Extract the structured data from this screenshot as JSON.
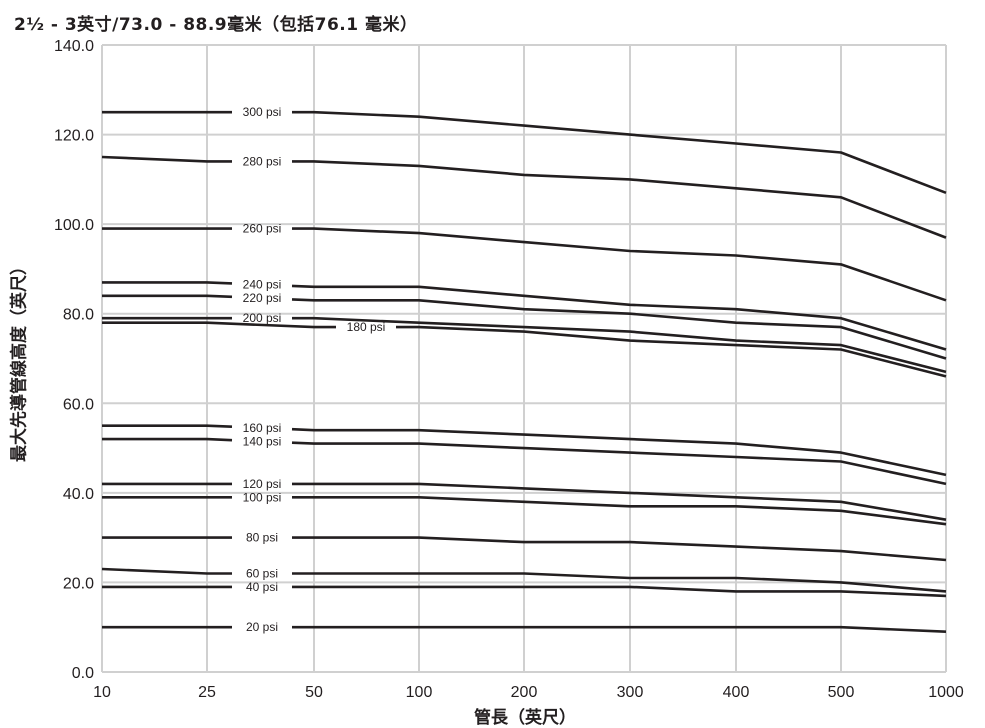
{
  "chart_data": {
    "type": "line",
    "title": "2½  -  3英寸/73.0  -  88.9毫米（包括76.1 毫米）",
    "xlabel": "管長（英尺）",
    "ylabel": "最大先導管線高度（英尺）",
    "x_categories": [
      "10",
      "25",
      "50",
      "100",
      "200",
      "300",
      "400",
      "500",
      "1000"
    ],
    "y_ticks": [
      "0.0",
      "20.0",
      "40.0",
      "60.0",
      "80.0",
      "100.0",
      "120.0",
      "140.0"
    ],
    "ylim": [
      0,
      140
    ],
    "grid": true,
    "series": [
      {
        "name": "300 psi",
        "values": [
          125,
          125,
          125,
          124,
          122,
          120,
          118,
          116,
          107
        ]
      },
      {
        "name": "280 psi",
        "values": [
          115,
          114,
          114,
          113,
          111,
          110,
          108,
          106,
          97
        ]
      },
      {
        "name": "260 psi",
        "values": [
          99,
          99,
          99,
          98,
          96,
          94,
          93,
          91,
          83
        ]
      },
      {
        "name": "240 psi",
        "values": [
          87,
          87,
          86,
          86,
          84,
          82,
          81,
          79,
          72
        ]
      },
      {
        "name": "220 psi",
        "values": [
          84,
          84,
          83,
          83,
          81,
          80,
          78,
          77,
          70
        ]
      },
      {
        "name": "200 psi",
        "values": [
          79,
          79,
          79,
          78,
          77,
          76,
          74,
          73,
          67
        ]
      },
      {
        "name": "180 psi",
        "values": [
          78,
          78,
          77,
          77,
          76,
          74,
          73,
          72,
          66
        ]
      },
      {
        "name": "160 psi",
        "values": [
          55,
          55,
          54,
          54,
          53,
          52,
          51,
          49,
          44
        ]
      },
      {
        "name": "140 psi",
        "values": [
          52,
          52,
          51,
          51,
          50,
          49,
          48,
          47,
          42
        ]
      },
      {
        "name": "120 psi",
        "values": [
          42,
          42,
          42,
          42,
          41,
          40,
          39,
          38,
          34
        ]
      },
      {
        "name": "100 psi",
        "values": [
          39,
          39,
          39,
          39,
          38,
          37,
          37,
          36,
          33
        ]
      },
      {
        "name": "80 psi",
        "values": [
          30,
          30,
          30,
          30,
          29,
          29,
          28,
          27,
          25
        ]
      },
      {
        "name": "60 psi",
        "values": [
          23,
          22,
          22,
          22,
          22,
          21,
          21,
          20,
          18
        ]
      },
      {
        "name": "40 psi",
        "values": [
          19,
          19,
          19,
          19,
          19,
          19,
          18,
          18,
          17
        ]
      },
      {
        "name": "20 psi",
        "values": [
          10,
          10,
          10,
          10,
          10,
          10,
          10,
          10,
          9
        ]
      }
    ],
    "line_color": "#231f20",
    "grid_color": "#d0d0d0"
  }
}
